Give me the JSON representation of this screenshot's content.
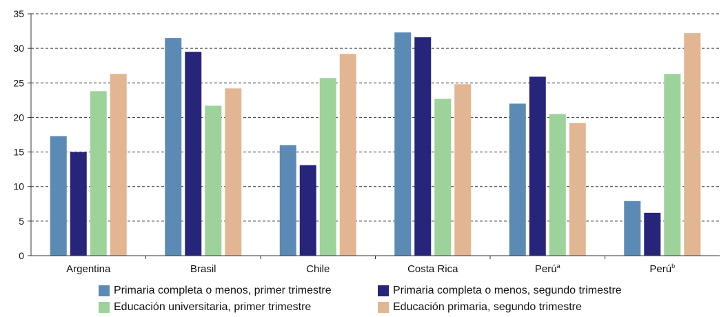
{
  "chart_data": {
    "type": "bar",
    "title": "",
    "xlabel": "",
    "ylabel": "",
    "ylim": [
      0,
      35
    ],
    "yticks": [
      0,
      5,
      10,
      15,
      20,
      25,
      30,
      35
    ],
    "grid": "horizontal-dashed",
    "legend_position": "bottom",
    "categories": [
      "Argentina",
      "Brasil",
      "Chile",
      "Costa Rica",
      "Perú",
      "Perú"
    ],
    "category_superscripts": [
      "",
      "",
      "",
      "",
      "a",
      "b"
    ],
    "series": [
      {
        "name": "Primaria completa o menos, primer trimestre",
        "color": "#5b8ab5",
        "values": [
          17.3,
          31.5,
          16.0,
          32.3,
          22.0,
          7.9
        ]
      },
      {
        "name": "Primaria completa o menos, segundo trimestre",
        "color": "#27257a",
        "values": [
          15.0,
          29.5,
          13.1,
          31.6,
          25.9,
          6.2
        ]
      },
      {
        "name": "Educación universitaria, primer trimestre",
        "color": "#9dd39b",
        "values": [
          23.8,
          21.7,
          25.7,
          22.7,
          20.5,
          26.3
        ]
      },
      {
        "name": "Educación primaria, segundo trimestre",
        "color": "#e2b692",
        "values": [
          26.3,
          24.2,
          29.2,
          24.8,
          19.2,
          32.2
        ]
      }
    ]
  }
}
